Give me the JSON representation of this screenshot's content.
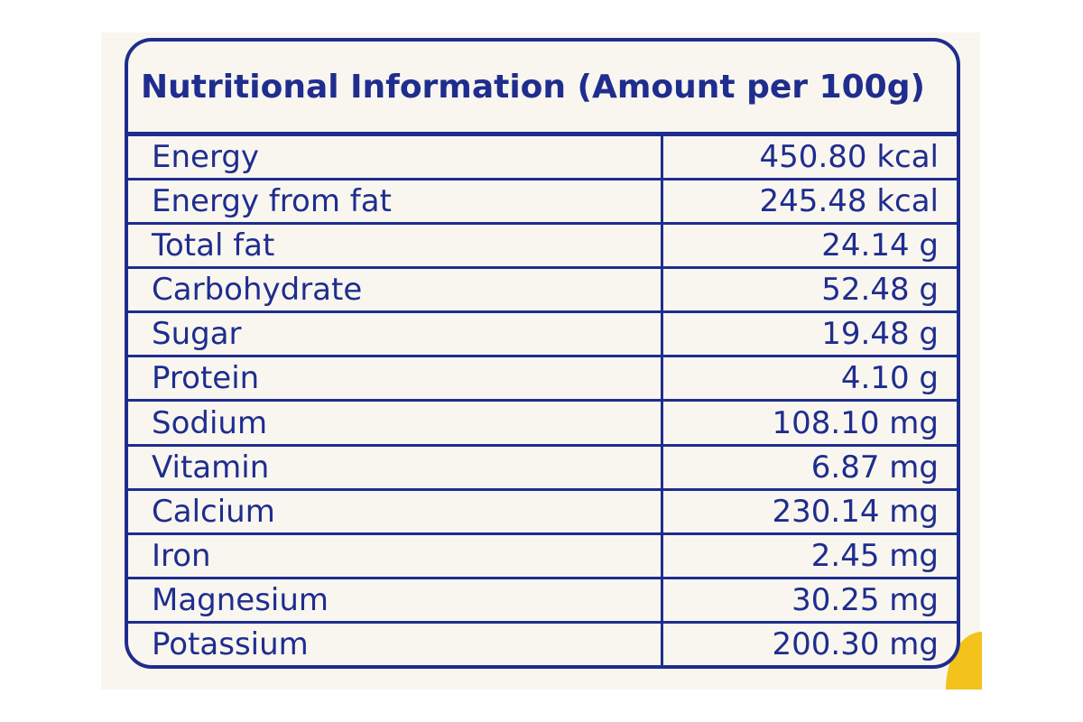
{
  "label": {
    "title": "Nutritional Information (Amount per 100g)",
    "rows": [
      {
        "nutrient": "Energy",
        "amount": "450.80 kcal"
      },
      {
        "nutrient": "Energy from fat",
        "amount": "245.48 kcal"
      },
      {
        "nutrient": "Total fat",
        "amount": "24.14 g"
      },
      {
        "nutrient": "Carbohydrate",
        "amount": "52.48 g"
      },
      {
        "nutrient": "Sugar",
        "amount": "19.48 g"
      },
      {
        "nutrient": "Protein",
        "amount": "4.10 g"
      },
      {
        "nutrient": "Sodium",
        "amount": "108.10 mg"
      },
      {
        "nutrient": "Vitamin",
        "amount": "6.87 mg"
      },
      {
        "nutrient": "Calcium",
        "amount": "230.14 mg"
      },
      {
        "nutrient": "Iron",
        "amount": "2.45 mg"
      },
      {
        "nutrient": "Magnesium",
        "amount": "30.25 mg"
      },
      {
        "nutrient": "Potassium",
        "amount": "200.30 mg"
      }
    ]
  },
  "colors": {
    "ink": "#1f2d8e",
    "paper": "#f8f6ef",
    "package_yellow": "#f3c21b"
  }
}
